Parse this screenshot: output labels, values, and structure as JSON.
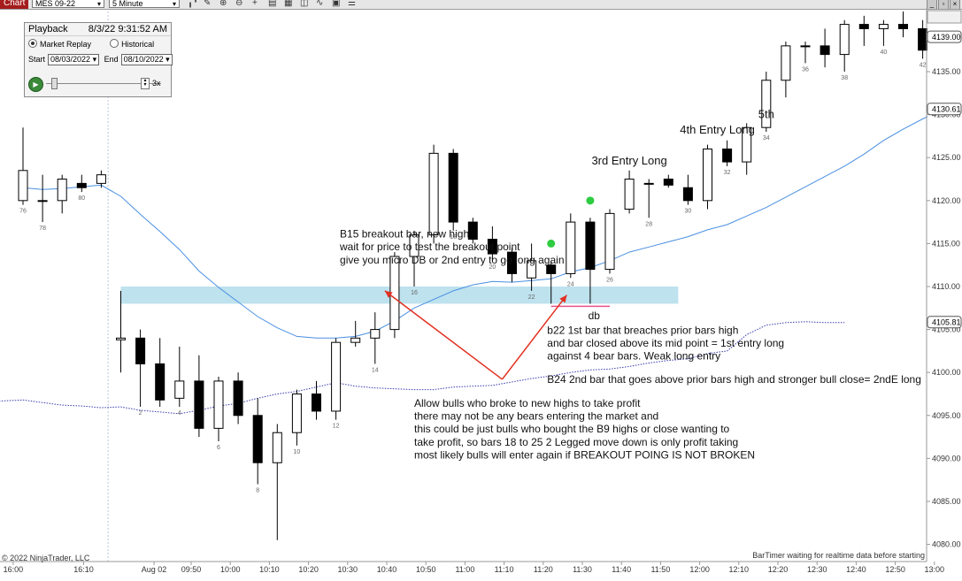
{
  "toolbar": {
    "tab_label": "Chart",
    "instrument": "MES 09-22",
    "interval": "5 Minute",
    "icons": [
      "bar-style-icon",
      "drawing-tools-icon",
      "zoom-in-icon",
      "zoom-out-icon",
      "crosshair-icon",
      "data-box-icon",
      "templates-icon",
      "indicators-icon",
      "strategies-icon",
      "properties-icon",
      "list-icon"
    ],
    "window_controls": [
      "minimize-icon",
      "restore-icon",
      "close-icon"
    ]
  },
  "playback": {
    "title": "Playback",
    "timestamp": "8/3/22 9:31:52 AM",
    "mode_replay": "Market Replay",
    "mode_historical": "Historical",
    "start_label": "Start",
    "start_date": "08/03/2022",
    "end_label": "End",
    "end_date": "08/10/2022",
    "speed": "3x"
  },
  "chart_data": {
    "type": "candlestick",
    "instrument": "MES 09-22",
    "interval": "5 Minute",
    "ylim": [
      4078,
      4142
    ],
    "y_ticks": [
      "4080.00",
      "4085.00",
      "4090.00",
      "4095.00",
      "4100.00",
      "4105.00",
      "4110.00",
      "4115.00",
      "4120.00",
      "4125.00",
      "4130.00",
      "4135.00",
      "4139.00"
    ],
    "x_ticks": [
      "16:00",
      "16:10",
      "Aug 02",
      "09:50",
      "10:00",
      "10:10",
      "10:20",
      "10:30",
      "10:40",
      "10:50",
      "11:00",
      "11:10",
      "11:20",
      "11:30",
      "11:40",
      "11:50",
      "12:00",
      "12:10",
      "12:20",
      "12:30",
      "12:40",
      "12:50",
      "13:00"
    ],
    "price_markers": [
      {
        "label": "4139.00",
        "value": 4139.0
      },
      {
        "label": "4130.61",
        "value": 4130.61
      },
      {
        "label": "4105.81",
        "value": 4105.81
      }
    ],
    "bars": [
      {
        "o": 4120,
        "h": 4128.5,
        "l": 4119.5,
        "c": 4123.5
      },
      {
        "o": 4120,
        "h": 4123,
        "l": 4117.5,
        "c": 4120
      },
      {
        "o": 4120,
        "h": 4123,
        "l": 4118.5,
        "c": 4122.5
      },
      {
        "o": 4122,
        "h": 4123,
        "l": 4121,
        "c": 4121.5
      },
      {
        "o": 4122,
        "h": 4123.5,
        "l": 4121.5,
        "c": 4123
      },
      {
        "o": 4103.8,
        "h": 4109.5,
        "l": 4100,
        "c": 4104
      },
      {
        "o": 4104,
        "h": 4105,
        "l": 4096,
        "c": 4101
      },
      {
        "o": 4101,
        "h": 4104,
        "l": 4096,
        "c": 4096.8
      },
      {
        "o": 4097,
        "h": 4103,
        "l": 4096,
        "c": 4099
      },
      {
        "o": 4099,
        "h": 4102,
        "l": 4092.5,
        "c": 4093.5
      },
      {
        "o": 4093.5,
        "h": 4099.5,
        "l": 4092,
        "c": 4099
      },
      {
        "o": 4099,
        "h": 4100,
        "l": 4094,
        "c": 4095
      },
      {
        "o": 4095,
        "h": 4097,
        "l": 4087,
        "c": 4089.5
      },
      {
        "o": 4089.5,
        "h": 4094,
        "l": 4080.5,
        "c": 4093
      },
      {
        "o": 4093,
        "h": 4098,
        "l": 4091.5,
        "c": 4097.5
      },
      {
        "o": 4097.5,
        "h": 4099,
        "l": 4094.5,
        "c": 4095.5
      },
      {
        "o": 4095.5,
        "h": 4104,
        "l": 4094.5,
        "c": 4103.5
      },
      {
        "o": 4103.5,
        "h": 4106,
        "l": 4103,
        "c": 4104
      },
      {
        "o": 4104,
        "h": 4107,
        "l": 4101,
        "c": 4105
      },
      {
        "o": 4105,
        "h": 4114,
        "l": 4104,
        "c": 4113.5
      },
      {
        "o": 4113.5,
        "h": 4116.5,
        "l": 4110,
        "c": 4116
      },
      {
        "o": 4116,
        "h": 4126.5,
        "l": 4115,
        "c": 4125.5
      },
      {
        "o": 4125.5,
        "h": 4126,
        "l": 4116.5,
        "c": 4117.5
      },
      {
        "o": 4117.5,
        "h": 4118,
        "l": 4115,
        "c": 4115.5
      },
      {
        "o": 4115.5,
        "h": 4117,
        "l": 4113,
        "c": 4113.8
      },
      {
        "o": 4114,
        "h": 4114.5,
        "l": 4110.5,
        "c": 4111.5
      },
      {
        "o": 4111,
        "h": 4115,
        "l": 4109.5,
        "c": 4113
      },
      {
        "o": 4112.5,
        "h": 4113,
        "l": 4108,
        "c": 4111.5
      },
      {
        "o": 4111.5,
        "h": 4118.5,
        "l": 4111,
        "c": 4117.5
      },
      {
        "o": 4117.5,
        "h": 4118,
        "l": 4108,
        "c": 4112
      },
      {
        "o": 4112,
        "h": 4119,
        "l": 4111.5,
        "c": 4118.5
      },
      {
        "o": 4119,
        "h": 4123.5,
        "l": 4118.5,
        "c": 4122.5
      },
      {
        "o": 4122,
        "h": 4122.5,
        "l": 4118,
        "c": 4122
      },
      {
        "o": 4122.5,
        "h": 4123,
        "l": 4121.5,
        "c": 4121.8
      },
      {
        "o": 4121.5,
        "h": 4123,
        "l": 4119.5,
        "c": 4120
      },
      {
        "o": 4120,
        "h": 4126.5,
        "l": 4119,
        "c": 4126
      },
      {
        "o": 4126,
        "h": 4127,
        "l": 4124,
        "c": 4124.5
      },
      {
        "o": 4124.5,
        "h": 4129,
        "l": 4123,
        "c": 4128.5
      },
      {
        "o": 4128.5,
        "h": 4135,
        "l": 4128,
        "c": 4134
      },
      {
        "o": 4134,
        "h": 4138.5,
        "l": 4132,
        "c": 4138
      },
      {
        "o": 4138,
        "h": 4138.5,
        "l": 4136,
        "c": 4138
      },
      {
        "o": 4138,
        "h": 4140,
        "l": 4135.5,
        "c": 4137
      },
      {
        "o": 4137,
        "h": 4141,
        "l": 4135,
        "c": 4140.5
      },
      {
        "o": 4140.5,
        "h": 4141.5,
        "l": 4138,
        "c": 4140
      },
      {
        "o": 4140,
        "h": 4141,
        "l": 4138,
        "c": 4140.5
      },
      {
        "o": 4140.5,
        "h": 4142,
        "l": 4139,
        "c": 4140
      },
      {
        "o": 4140,
        "h": 4141,
        "l": 4136.5,
        "c": 4137.5
      }
    ],
    "bar_labels": [
      {
        "text": "76",
        "bar": 0
      },
      {
        "text": "78",
        "bar": 1
      },
      {
        "text": "80",
        "bar": 3
      },
      {
        "text": "2",
        "bar": 6
      },
      {
        "text": "4",
        "bar": 8
      },
      {
        "text": "6",
        "bar": 10
      },
      {
        "text": "8",
        "bar": 12
      },
      {
        "text": "10",
        "bar": 14
      },
      {
        "text": "12",
        "bar": 16
      },
      {
        "text": "14",
        "bar": 18
      },
      {
        "text": "16",
        "bar": 20
      },
      {
        "text": "18",
        "bar": 22
      },
      {
        "text": "20",
        "bar": 24
      },
      {
        "text": "22",
        "bar": 26
      },
      {
        "text": "24",
        "bar": 28
      },
      {
        "text": "26",
        "bar": 30
      },
      {
        "text": "28",
        "bar": 32
      },
      {
        "text": "30",
        "bar": 34
      },
      {
        "text": "32",
        "bar": 36
      },
      {
        "text": "34",
        "bar": 38
      },
      {
        "text": "36",
        "bar": 40
      },
      {
        "text": "38",
        "bar": 42
      },
      {
        "text": "40",
        "bar": 44
      },
      {
        "text": "42",
        "bar": 46
      }
    ],
    "ma_fast": [
      4121.5,
      4121.3,
      4121.4,
      4121.6,
      4121.8,
      4120.5,
      4118.4,
      4116.4,
      4114.3,
      4111.8,
      4109.9,
      4108.2,
      4106.5,
      4105.2,
      4104.2,
      4104,
      4104,
      4104.2,
      4104.8,
      4106,
      4107.5,
      4108.5,
      4109.5,
      4110.2,
      4110.6,
      4110.5,
      4110.7,
      4110.9,
      4111.7,
      4112.2,
      4113,
      4114,
      4114.6,
      4115.2,
      4115.8,
      4116.6,
      4117.2,
      4118.2,
      4119.2,
      4120.4,
      4121.6,
      4122.8,
      4124,
      4125.4,
      4127,
      4128.3,
      4129.5,
      4130.61
    ],
    "ma_slow": [
      4095.7,
      4095.9,
      4096.2,
      4096.6,
      4096.7,
      4096.8,
      4096.5,
      4096.2,
      4096.1,
      4095.9,
      4096,
      4095.6,
      4095.4,
      4095.2,
      4095.6,
      4096.1,
      4096.4,
      4097,
      4097.5,
      4097.8,
      4098.3,
      4098.8,
      4098.4,
      4098.2,
      4098.1,
      4098,
      4098,
      4098.3,
      4098.4,
      4098.5,
      4098.9,
      4099.3,
      4099.6,
      4100,
      4100.3,
      4100.4,
      4100.7,
      4101.1,
      4101.4,
      4101.6,
      4102.2,
      4102.5,
      4104.4,
      4105.5,
      4105.8,
      4105.9,
      4105.8,
      4105.81
    ],
    "ma_slow_start_bar": -5,
    "zone": {
      "from_bar": 5,
      "to_bar": 33.5,
      "y_low": 4108,
      "y_high": 4110
    },
    "entry_dots": [
      {
        "bar": 27,
        "y": 4115
      },
      {
        "bar": 29,
        "y": 4120
      }
    ],
    "db_line": {
      "from_bar": 27,
      "to_bar": 30,
      "y": 4107.7
    },
    "arrows": [
      {
        "from_bar": 24.5,
        "from_y": 4099.2,
        "to_bar": 18.5,
        "to_y": 4109.5
      },
      {
        "from_bar": 24.5,
        "from_y": 4099.2,
        "to_bar": 27.8,
        "to_y": 4109
      }
    ],
    "annotations": [
      {
        "bar": 16.2,
        "y": 4115.7,
        "anchor": "start",
        "size": 12,
        "text": "B15 breakout bar, new high"
      },
      {
        "bar": 16.2,
        "y": 4114.2,
        "anchor": "start",
        "size": 12,
        "text": "wait for price to test the breakout point"
      },
      {
        "bar": 16.2,
        "y": 4112.7,
        "anchor": "start",
        "size": 12,
        "text": "give you micro DB or 2nd entry to go long again"
      },
      {
        "bar": 29.2,
        "y": 4106.2,
        "anchor": "middle",
        "size": 12,
        "text": "db"
      },
      {
        "bar": 26.8,
        "y": 4104.5,
        "anchor": "start",
        "size": 12,
        "text": "b22 1st bar that breaches prior bars high"
      },
      {
        "bar": 26.8,
        "y": 4103,
        "anchor": "start",
        "size": 12,
        "text": "and bar closed above its mid point = 1st entry long"
      },
      {
        "bar": 26.8,
        "y": 4101.5,
        "anchor": "start",
        "size": 12,
        "text": "against  4 bear bars. Weak long entry"
      },
      {
        "bar": 26.8,
        "y": 4098.8,
        "anchor": "start",
        "size": 12,
        "text": "B24 2nd bar that goes above prior bars high and stronger bull close= 2ndE long"
      },
      {
        "bar": 20,
        "y": 4096,
        "anchor": "start",
        "size": 12,
        "text": "Allow bulls who broke to new highs to take profit"
      },
      {
        "bar": 20,
        "y": 4094.5,
        "anchor": "start",
        "size": 12,
        "text": "there may not be any bears entering the market and"
      },
      {
        "bar": 20,
        "y": 4093,
        "anchor": "start",
        "size": 12,
        "text": "this could be just bulls who bought the B9 highs or close wanting to"
      },
      {
        "bar": 20,
        "y": 4091.5,
        "anchor": "start",
        "size": 12,
        "text": "take profit, so bars 18 to 25 2 Legged move down is only profit taking"
      },
      {
        "bar": 20,
        "y": 4090,
        "anchor": "start",
        "size": 12,
        "text": "most likely bulls will enter again if BREAKOUT POING IS NOT BROKEN"
      },
      {
        "bar": 31,
        "y": 4124.2,
        "anchor": "middle",
        "size": 13,
        "text": "3rd Entry Long"
      },
      {
        "bar": 35.5,
        "y": 4127.8,
        "anchor": "middle",
        "size": 13,
        "text": "4th Entry Long"
      },
      {
        "bar": 38,
        "y": 4129.6,
        "anchor": "middle",
        "size": 13,
        "text": "5th"
      }
    ],
    "copyright": "© 2022 NinjaTrader, LLC",
    "status": "BarTimer waiting for realtime data before starting",
    "colors": {
      "up": "#ffffff",
      "down": "#000000",
      "ma_fast": "#4a90e2",
      "ma_slow": "#3a3ab0",
      "zone": "#a8d8e8",
      "arrow": "#e23020",
      "dot": "#2ecc40",
      "db": "#e8508a"
    }
  }
}
